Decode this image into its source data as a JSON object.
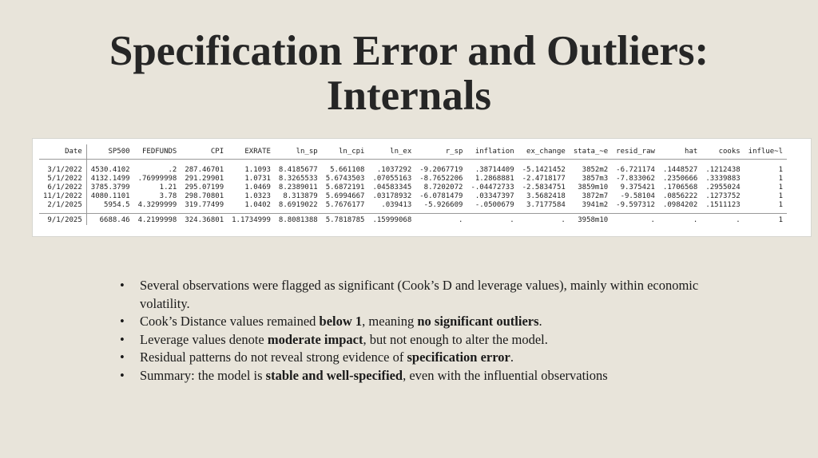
{
  "title": {
    "line1": "Specification Error and Outliers:",
    "line2": "Internals"
  },
  "table": {
    "columns": [
      "Date",
      "SP500",
      "FEDFUNDS",
      "CPI",
      "EXRATE",
      "ln_sp",
      "ln_cpi",
      "ln_ex",
      "r_sp",
      "inflation",
      "ex_change",
      "stata_~e",
      "resid_raw",
      "hat",
      "cooks",
      "influe~l"
    ],
    "rows": [
      [
        "3/1/2022",
        "4530.4102",
        ".2",
        "287.46701",
        "1.1093",
        "8.4185677",
        "5.661108",
        ".1037292",
        "-9.2067719",
        ".38714409",
        "-5.1421452",
        "3852m2",
        "-6.721174",
        ".1448527",
        ".1212438",
        "1"
      ],
      [
        "5/1/2022",
        "4132.1499",
        ".76999998",
        "291.29901",
        "1.0731",
        "8.3265533",
        "5.6743503",
        ".07055163",
        "-8.7652206",
        "1.2868881",
        "-2.4718177",
        "3857m3",
        "-7.833062",
        ".2350666",
        ".3339883",
        "1"
      ],
      [
        "6/1/2022",
        "3785.3799",
        "1.21",
        "295.07199",
        "1.0469",
        "8.2389011",
        "5.6872191",
        ".04583345",
        "8.7202072",
        "-.04472733",
        "-2.5834751",
        "3859m10",
        "9.375421",
        ".1706568",
        ".2955024",
        "1"
      ],
      [
        "11/1/2022",
        "4080.1101",
        "3.78",
        "298.70801",
        "1.0323",
        "8.313879",
        "5.6994667",
        ".03178932",
        "-6.0781479",
        ".03347397",
        "3.5682418",
        "3872m7",
        "-9.58104",
        ".0856222",
        ".1273752",
        "1"
      ],
      [
        "2/1/2025",
        "5954.5",
        "4.3299999",
        "319.77499",
        "1.0402",
        "8.6919022",
        "5.7676177",
        ".039413",
        "-5.926609",
        "-.0500679",
        "3.7177584",
        "3941m2",
        "-9.597312",
        ".0984202",
        ".1511123",
        "1"
      ]
    ],
    "last_row": [
      "9/1/2025",
      "6688.46",
      "4.2199998",
      "324.36801",
      "1.1734999",
      "8.8081388",
      "5.7818785",
      ".15999068",
      ".",
      ".",
      ".",
      "3958m10",
      ".",
      ".",
      ".",
      "1"
    ]
  },
  "bullets": [
    {
      "parts": [
        {
          "t": "Several observations were flagged as significant (Cook’s D and leverage values), mainly within economic volatility.",
          "b": false
        }
      ]
    },
    {
      "parts": [
        {
          "t": "Cook’s Distance values remained ",
          "b": false
        },
        {
          "t": "below 1",
          "b": true
        },
        {
          "t": ", meaning ",
          "b": false
        },
        {
          "t": "no significant outliers",
          "b": true
        },
        {
          "t": ".",
          "b": false
        }
      ]
    },
    {
      "parts": [
        {
          "t": "Leverage values denote ",
          "b": false
        },
        {
          "t": "moderate impact",
          "b": true
        },
        {
          "t": ", but not enough to alter the model.",
          "b": false
        }
      ]
    },
    {
      "parts": [
        {
          "t": "Residual patterns do not reveal strong evidence of ",
          "b": false
        },
        {
          "t": "specification error",
          "b": true
        },
        {
          "t": ".",
          "b": false
        }
      ]
    },
    {
      "parts": [
        {
          "t": "Summary: the model is ",
          "b": false
        },
        {
          "t": "stable and well-specified",
          "b": true
        },
        {
          "t": ", even with the influential observations",
          "b": false
        }
      ]
    }
  ]
}
